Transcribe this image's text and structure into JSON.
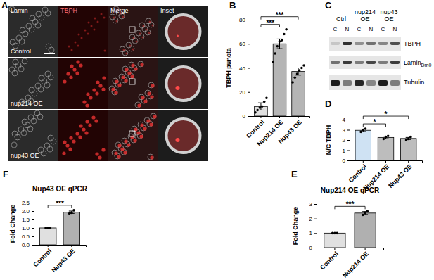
{
  "chart_data": [
    {
      "type": "bar",
      "panel_label": "B",
      "y_label": "TBPH puncta",
      "categories": [
        "Control",
        "Nup214 OE",
        "Nup43 OE"
      ],
      "values": [
        8,
        60,
        37
      ],
      "errors": [
        3,
        4,
        3
      ],
      "points": [
        [
          3,
          5,
          7,
          8,
          12,
          15
        ],
        [
          45,
          52,
          58,
          62,
          63,
          68,
          72
        ],
        [
          28,
          32,
          35,
          38,
          40,
          42
        ]
      ],
      "colors": [
        "#e0e0e0",
        "#b5b5b5",
        "#b5b5b5"
      ],
      "ylim": [
        0,
        80
      ],
      "yticks": [
        0,
        20,
        40,
        60,
        80
      ],
      "significance": [
        {
          "pair": [
            0,
            1
          ],
          "label": "***"
        },
        {
          "pair": [
            0,
            2
          ],
          "label": "***"
        }
      ]
    },
    {
      "type": "bar",
      "panel_label": "D",
      "y_label": "N/C TBPH",
      "categories": [
        "Control",
        "Nup214 OE",
        "Nup43 OE"
      ],
      "values": [
        2.95,
        2.25,
        2.15
      ],
      "errors": [
        0.12,
        0.12,
        0.1
      ],
      "points": [
        [
          2.8,
          3.0,
          3.1
        ],
        [
          2.1,
          2.3,
          2.4
        ],
        [
          2.0,
          2.1,
          2.3
        ]
      ],
      "colors": [
        "#cfe2f3",
        "#bdbdbd",
        "#bdbdbd"
      ],
      "ylim": [
        0,
        4
      ],
      "yticks": [
        0,
        1,
        2,
        3,
        4
      ],
      "significance": [
        {
          "pair": [
            0,
            1
          ],
          "label": "*"
        },
        {
          "pair": [
            0,
            2
          ],
          "label": "*"
        }
      ]
    },
    {
      "type": "bar",
      "panel_label": "E",
      "title": "Nup214 OE qPCR",
      "y_label": "Fold Change",
      "categories": [
        "Control",
        "Nup214 OE"
      ],
      "values": [
        1.0,
        2.38
      ],
      "errors": [
        0.0,
        0.1
      ],
      "points": [
        [
          1.0,
          1.0,
          1.0
        ],
        [
          2.25,
          2.4,
          2.5
        ]
      ],
      "colors": [
        "#e0e0e0",
        "#b0b0b0"
      ],
      "ylim": [
        0,
        3
      ],
      "yticks": [
        0,
        1,
        2,
        3
      ],
      "significance": [
        {
          "pair": [
            0,
            1
          ],
          "label": "***"
        }
      ]
    },
    {
      "type": "bar",
      "panel_label": "F",
      "title": "Nup43 OE qPCR",
      "y_label": "Fold Change",
      "categories": [
        "Control",
        "Nup43 OE"
      ],
      "values": [
        1.0,
        1.93
      ],
      "errors": [
        0.0,
        0.07
      ],
      "points": [
        [
          1.0,
          1.0,
          1.0
        ],
        [
          1.85,
          1.9,
          2.05
        ]
      ],
      "colors": [
        "#e0e0e0",
        "#b0b0b0"
      ],
      "ylim": [
        0,
        2.5
      ],
      "yticks": [
        {
          "value": 0,
          "label": "0.0"
        },
        {
          "value": 0.5,
          "label": "0.5"
        },
        {
          "value": 1,
          "label": "1.0"
        },
        {
          "value": 1.5,
          "label": "1.5"
        },
        {
          "value": 2,
          "label": "2.0"
        },
        {
          "value": 2.5,
          "label": "2.5"
        }
      ],
      "significance": [
        {
          "pair": [
            0,
            1
          ],
          "label": "***"
        }
      ]
    }
  ],
  "image_panel": {
    "panel_label": "A",
    "columns": [
      "Lamin",
      "TBPH",
      "Merge",
      "Inset"
    ],
    "rows": [
      "Control",
      "nup214 OE",
      "nup43 OE"
    ]
  },
  "blot": {
    "panel_label": "C",
    "groups": [
      [
        "Ctrl"
      ],
      [
        "nup214",
        "OE"
      ],
      [
        "nup43",
        "OE"
      ]
    ],
    "lanes": [
      "C",
      "N"
    ],
    "rows": [
      {
        "label": "TBPH"
      },
      {
        "label": "Lamin",
        "subscript": "Dm0"
      },
      {
        "label": "Tubulin"
      }
    ]
  }
}
